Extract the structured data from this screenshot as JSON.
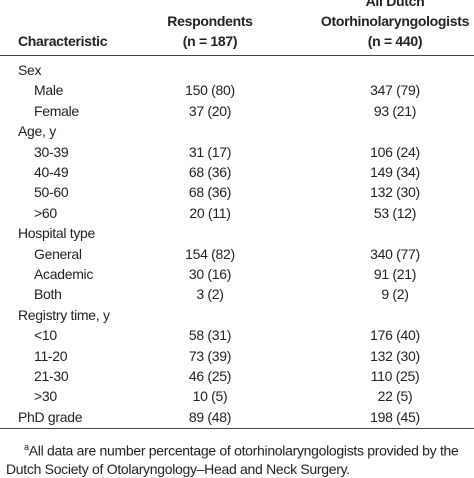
{
  "table": {
    "header": {
      "characteristic": "Characteristic",
      "respondents": [
        "Respondents",
        "(n = 187)"
      ],
      "all": [
        "All Dutch",
        "Otorhinolaryngologists",
        "(n = 440)"
      ]
    },
    "sections": [
      {
        "label": "Sex",
        "rows": [
          [
            "Male",
            "150 (80)",
            "347 (79)"
          ],
          [
            "Female",
            "37 (20)",
            "93 (21)"
          ]
        ]
      },
      {
        "label": "Age, y",
        "rows": [
          [
            "30-39",
            "31 (17)",
            "106 (24)"
          ],
          [
            "40-49",
            "68 (36)",
            "149 (34)"
          ],
          [
            "50-60",
            "68 (36)",
            "132 (30)"
          ],
          [
            ">60",
            "20 (11)",
            "53 (12)"
          ]
        ]
      },
      {
        "label": "Hospital type",
        "rows": [
          [
            "General",
            "154 (82)",
            "340 (77)"
          ],
          [
            "Academic",
            "30 (16)",
            "91 (21)"
          ],
          [
            "Both",
            "3 (2)",
            "9 (2)"
          ]
        ]
      },
      {
        "label": "Registry time, y",
        "rows": [
          [
            "<10",
            "58 (31)",
            "176 (40)"
          ],
          [
            "11-20",
            "73 (39)",
            "132 (30)"
          ],
          [
            "21-30",
            "46 (25)",
            "110 (25)"
          ],
          [
            ">30",
            "10 (5)",
            "22 (5)"
          ]
        ]
      },
      {
        "label": "PhD grade",
        "respondents": "89 (48)",
        "all": "198 (45)",
        "rows": []
      }
    ],
    "footnote": {
      "marker": "a",
      "text": "All data are number percentage of otorhinolaryngologists provided by the Dutch Society of Otolaryngology–Head and Neck Surgery."
    }
  }
}
